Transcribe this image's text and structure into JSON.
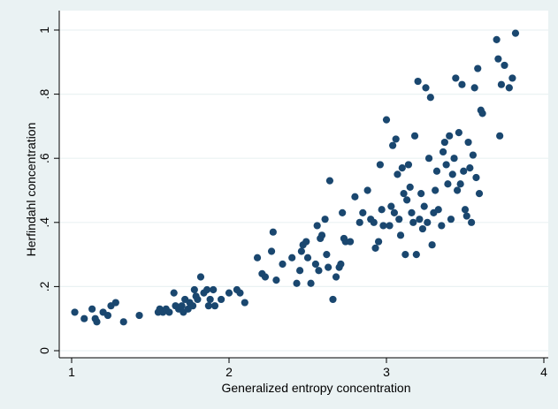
{
  "chart_data": {
    "type": "scatter",
    "title": "",
    "xlabel": "Generalized entropy concentration",
    "ylabel": "Herfindahl concentration",
    "xlim": [
      1,
      4
    ],
    "ylim": [
      0,
      1
    ],
    "xticks": [
      1,
      2,
      3,
      4
    ],
    "xtick_labels": [
      "1",
      "2",
      "3",
      "4"
    ],
    "yticks": [
      0,
      0.2,
      0.4,
      0.6,
      0.8,
      1
    ],
    "ytick_labels": [
      "0",
      ".2",
      ".4",
      ".6",
      ".8",
      "1"
    ],
    "grid": "horizontal",
    "legend": "none",
    "colors": {
      "outer_background": "#eaf2f3",
      "plot_background": "#ffffff",
      "marker": "#1a476f",
      "grid": "#eaf2f3",
      "axis": "#000000"
    },
    "points": [
      [
        1.02,
        0.12
      ],
      [
        1.08,
        0.1
      ],
      [
        1.13,
        0.13
      ],
      [
        1.15,
        0.1
      ],
      [
        1.16,
        0.09
      ],
      [
        1.2,
        0.12
      ],
      [
        1.23,
        0.11
      ],
      [
        1.25,
        0.14
      ],
      [
        1.28,
        0.15
      ],
      [
        1.33,
        0.09
      ],
      [
        1.43,
        0.11
      ],
      [
        1.55,
        0.12
      ],
      [
        1.56,
        0.13
      ],
      [
        1.58,
        0.12
      ],
      [
        1.6,
        0.13
      ],
      [
        1.62,
        0.12
      ],
      [
        1.65,
        0.18
      ],
      [
        1.66,
        0.14
      ],
      [
        1.68,
        0.13
      ],
      [
        1.7,
        0.14
      ],
      [
        1.71,
        0.12
      ],
      [
        1.72,
        0.16
      ],
      [
        1.74,
        0.13
      ],
      [
        1.75,
        0.15
      ],
      [
        1.77,
        0.14
      ],
      [
        1.78,
        0.19
      ],
      [
        1.79,
        0.17
      ],
      [
        1.8,
        0.16
      ],
      [
        1.82,
        0.23
      ],
      [
        1.84,
        0.18
      ],
      [
        1.86,
        0.19
      ],
      [
        1.87,
        0.14
      ],
      [
        1.88,
        0.16
      ],
      [
        1.9,
        0.19
      ],
      [
        1.91,
        0.14
      ],
      [
        1.95,
        0.16
      ],
      [
        2.0,
        0.18
      ],
      [
        2.05,
        0.19
      ],
      [
        2.07,
        0.18
      ],
      [
        2.1,
        0.15
      ],
      [
        2.18,
        0.29
      ],
      [
        2.21,
        0.24
      ],
      [
        2.23,
        0.23
      ],
      [
        2.27,
        0.31
      ],
      [
        2.28,
        0.37
      ],
      [
        2.3,
        0.22
      ],
      [
        2.34,
        0.27
      ],
      [
        2.4,
        0.29
      ],
      [
        2.43,
        0.21
      ],
      [
        2.45,
        0.25
      ],
      [
        2.46,
        0.31
      ],
      [
        2.47,
        0.33
      ],
      [
        2.49,
        0.34
      ],
      [
        2.5,
        0.29
      ],
      [
        2.52,
        0.21
      ],
      [
        2.55,
        0.27
      ],
      [
        2.56,
        0.39
      ],
      [
        2.57,
        0.25
      ],
      [
        2.58,
        0.35
      ],
      [
        2.59,
        0.36
      ],
      [
        2.61,
        0.41
      ],
      [
        2.62,
        0.3
      ],
      [
        2.63,
        0.26
      ],
      [
        2.64,
        0.53
      ],
      [
        2.66,
        0.16
      ],
      [
        2.68,
        0.23
      ],
      [
        2.7,
        0.26
      ],
      [
        2.71,
        0.27
      ],
      [
        2.72,
        0.43
      ],
      [
        2.73,
        0.35
      ],
      [
        2.74,
        0.34
      ],
      [
        2.77,
        0.34
      ],
      [
        2.8,
        0.48
      ],
      [
        2.83,
        0.4
      ],
      [
        2.85,
        0.43
      ],
      [
        2.88,
        0.5
      ],
      [
        2.9,
        0.41
      ],
      [
        2.92,
        0.4
      ],
      [
        2.93,
        0.32
      ],
      [
        2.95,
        0.34
      ],
      [
        2.96,
        0.58
      ],
      [
        2.97,
        0.44
      ],
      [
        2.98,
        0.39
      ],
      [
        3.0,
        0.72
      ],
      [
        3.02,
        0.39
      ],
      [
        3.03,
        0.45
      ],
      [
        3.04,
        0.64
      ],
      [
        3.05,
        0.43
      ],
      [
        3.06,
        0.66
      ],
      [
        3.07,
        0.55
      ],
      [
        3.08,
        0.41
      ],
      [
        3.09,
        0.36
      ],
      [
        3.1,
        0.57
      ],
      [
        3.11,
        0.49
      ],
      [
        3.12,
        0.3
      ],
      [
        3.13,
        0.47
      ],
      [
        3.14,
        0.58
      ],
      [
        3.15,
        0.51
      ],
      [
        3.16,
        0.43
      ],
      [
        3.17,
        0.4
      ],
      [
        3.18,
        0.67
      ],
      [
        3.19,
        0.3
      ],
      [
        3.2,
        0.84
      ],
      [
        3.21,
        0.41
      ],
      [
        3.22,
        0.49
      ],
      [
        3.23,
        0.38
      ],
      [
        3.24,
        0.45
      ],
      [
        3.25,
        0.82
      ],
      [
        3.26,
        0.4
      ],
      [
        3.27,
        0.6
      ],
      [
        3.28,
        0.79
      ],
      [
        3.29,
        0.33
      ],
      [
        3.3,
        0.43
      ],
      [
        3.31,
        0.5
      ],
      [
        3.32,
        0.56
      ],
      [
        3.33,
        0.44
      ],
      [
        3.35,
        0.39
      ],
      [
        3.36,
        0.62
      ],
      [
        3.37,
        0.65
      ],
      [
        3.38,
        0.58
      ],
      [
        3.39,
        0.52
      ],
      [
        3.4,
        0.67
      ],
      [
        3.41,
        0.41
      ],
      [
        3.42,
        0.55
      ],
      [
        3.43,
        0.6
      ],
      [
        3.44,
        0.85
      ],
      [
        3.45,
        0.5
      ],
      [
        3.46,
        0.68
      ],
      [
        3.47,
        0.52
      ],
      [
        3.48,
        0.83
      ],
      [
        3.49,
        0.56
      ],
      [
        3.5,
        0.44
      ],
      [
        3.51,
        0.42
      ],
      [
        3.52,
        0.65
      ],
      [
        3.53,
        0.57
      ],
      [
        3.54,
        0.4
      ],
      [
        3.55,
        0.61
      ],
      [
        3.56,
        0.82
      ],
      [
        3.57,
        0.54
      ],
      [
        3.58,
        0.88
      ],
      [
        3.59,
        0.49
      ],
      [
        3.6,
        0.75
      ],
      [
        3.61,
        0.74
      ],
      [
        3.7,
        0.97
      ],
      [
        3.71,
        0.91
      ],
      [
        3.72,
        0.67
      ],
      [
        3.73,
        0.83
      ],
      [
        3.75,
        0.89
      ],
      [
        3.78,
        0.82
      ],
      [
        3.8,
        0.85
      ],
      [
        3.82,
        0.99
      ]
    ]
  }
}
